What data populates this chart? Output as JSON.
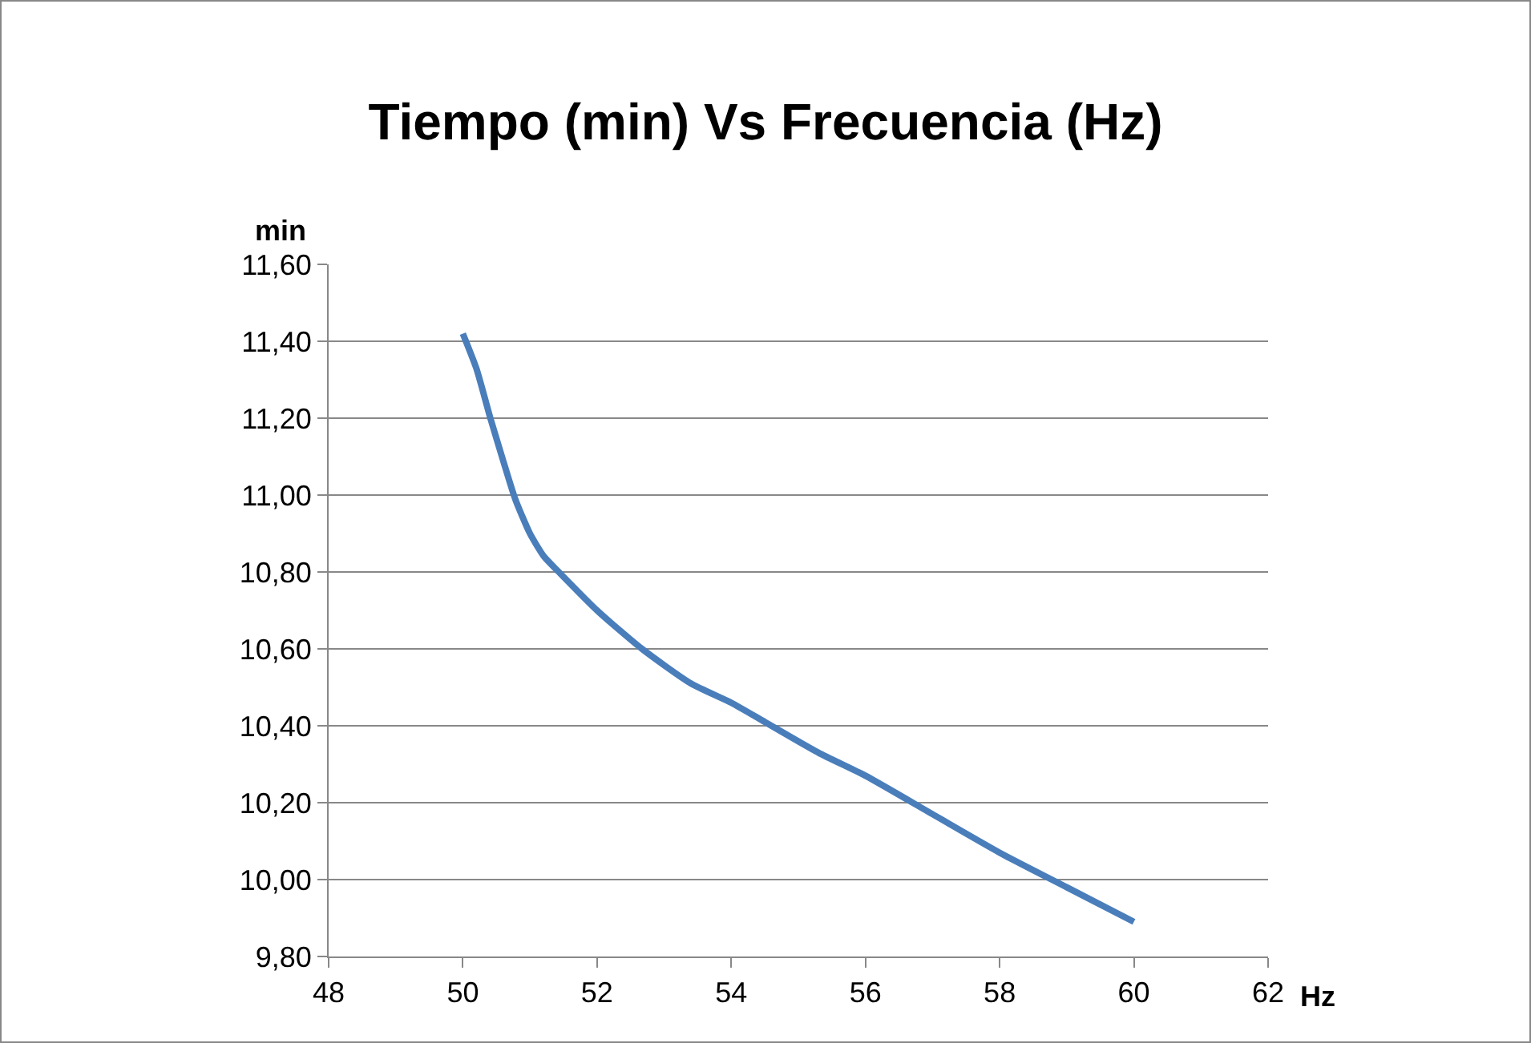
{
  "chart_data": {
    "type": "line",
    "title": "Tiempo (min) Vs Frecuencia (Hz)",
    "xlabel": "Hz",
    "ylabel": "min",
    "x": [
      50,
      50.2,
      50.41,
      50.6,
      50.78,
      51.0,
      51.21,
      51.43,
      52,
      52.67,
      53.4,
      54,
      54.5,
      55.3,
      56,
      57,
      58,
      59,
      60
    ],
    "series": [
      {
        "color": "#4a7ebb",
        "values": [
          11.42,
          11.33,
          11.2,
          11.09,
          10.99,
          10.9,
          10.84,
          10.8,
          10.7,
          10.6,
          10.51,
          10.46,
          10.41,
          10.33,
          10.27,
          10.17,
          10.07,
          9.98,
          9.89
        ]
      }
    ],
    "xlim": [
      48,
      62
    ],
    "xticks": [
      48,
      50,
      52,
      54,
      56,
      58,
      60,
      62
    ],
    "ylim": [
      9.8,
      11.6
    ],
    "yticks": [
      {
        "value": 9.8,
        "label": "9,80"
      },
      {
        "value": 10,
        "label": "10,00"
      },
      {
        "value": 10.2,
        "label": "10,20"
      },
      {
        "value": 10.4,
        "label": "10,40"
      },
      {
        "value": 10.6,
        "label": "10,60"
      },
      {
        "value": 10.8,
        "label": "10,80"
      },
      {
        "value": 11,
        "label": "11,00"
      },
      {
        "value": 11.2,
        "label": "11,20"
      },
      {
        "value": 11.4,
        "label": "11,40"
      },
      {
        "value": 11.6,
        "label": "11,60"
      }
    ],
    "grid": "y",
    "marker": "none",
    "line_style": "solid"
  }
}
